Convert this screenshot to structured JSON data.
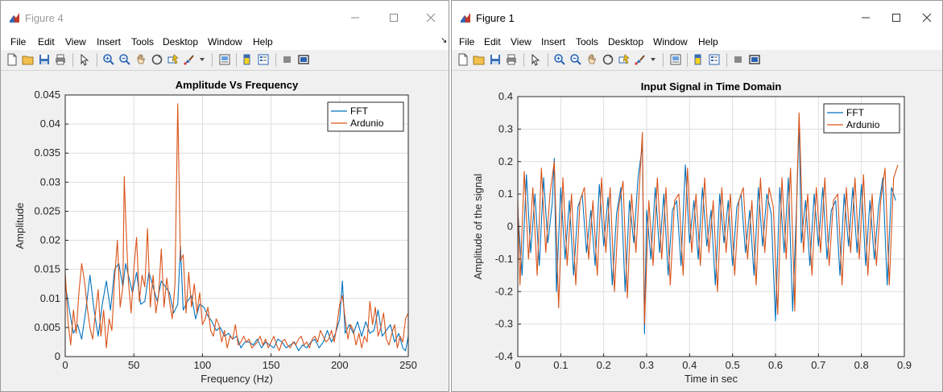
{
  "windows": [
    {
      "title": "Figure 4",
      "menu": [
        "File",
        "Edit",
        "View",
        "Insert",
        "Tools",
        "Desktop",
        "Window",
        "Help"
      ],
      "colors": {
        "fft": "#0072BD",
        "ardunio": "#D95319",
        "titlebar_text": "#9a9a9a"
      }
    },
    {
      "title": "Figure 1",
      "menu": [
        "File",
        "Edit",
        "View",
        "Insert",
        "Tools",
        "Desktop",
        "Window",
        "Help"
      ],
      "colors": {
        "fft": "#0072BD",
        "ardunio": "#D95319",
        "titlebar_text": "#000000"
      }
    }
  ],
  "toolbar_icons": [
    "new-file-icon",
    "open-folder-icon",
    "save-icon",
    "print-icon",
    "pointer-icon",
    "zoom-in-icon",
    "zoom-out-icon",
    "pan-hand-icon",
    "rotate-3d-icon",
    "data-cursor-icon",
    "brush-icon",
    "brush-dropdown-icon",
    "link-plot-icon",
    "colorbar-icon",
    "legend-icon",
    "hide-tools-icon",
    "show-tools-icon"
  ],
  "chart_data": [
    {
      "type": "line",
      "title": "Amplitude Vs Frequency",
      "xlabel": "Frequency  (Hz)",
      "ylabel": "Amplitude",
      "xlim": [
        0,
        250
      ],
      "ylim": [
        0,
        0.045
      ],
      "xticks": [
        0,
        50,
        100,
        150,
        200,
        250
      ],
      "xtick_labels": [
        "0",
        "50",
        "100",
        "150",
        "200",
        "250"
      ],
      "yticks": [
        0,
        0.005,
        0.01,
        0.015,
        0.02,
        0.025,
        0.03,
        0.035,
        0.04,
        0.045
      ],
      "ytick_labels": [
        "0",
        "0.005",
        "0.01",
        "0.015",
        "0.02",
        "0.025",
        "0.03",
        "0.035",
        "0.04",
        "0.045"
      ],
      "grid": true,
      "legend": "top-right",
      "series": [
        {
          "name": "FFT",
          "x": [
            0,
            3,
            6,
            9,
            12,
            15,
            18,
            21,
            24,
            27,
            30,
            33,
            36,
            39,
            42,
            44,
            46,
            49,
            52,
            55,
            58,
            61,
            64,
            67,
            70,
            73,
            76,
            79,
            82,
            84,
            86,
            89,
            92,
            95,
            98,
            101,
            104,
            107,
            110,
            113,
            116,
            119,
            122,
            125,
            128,
            131,
            134,
            137,
            140,
            143,
            146,
            149,
            152,
            155,
            158,
            161,
            164,
            167,
            170,
            173,
            176,
            179,
            182,
            185,
            188,
            191,
            194,
            197,
            200,
            202,
            204,
            207,
            210,
            213,
            216,
            219,
            222,
            225,
            228,
            231,
            234,
            237,
            240,
            243,
            246,
            248,
            250
          ],
          "y": [
            0.0125,
            0.008,
            0.004,
            0.0055,
            0.003,
            0.008,
            0.014,
            0.008,
            0.0035,
            0.009,
            0.013,
            0.008,
            0.015,
            0.016,
            0.012,
            0.016,
            0.014,
            0.011,
            0.0145,
            0.009,
            0.0095,
            0.0145,
            0.012,
            0.0095,
            0.013,
            0.012,
            0.011,
            0.0075,
            0.009,
            0.019,
            0.008,
            0.0095,
            0.0105,
            0.0065,
            0.009,
            0.0085,
            0.007,
            0.006,
            0.0045,
            0.005,
            0.0035,
            0.004,
            0.003,
            0.0035,
            0.0015,
            0.0025,
            0.0025,
            0.002,
            0.003,
            0.0015,
            0.0025,
            0.002,
            0.0015,
            0.003,
            0.0025,
            0.0015,
            0.002,
            0.0025,
            0.001,
            0.002,
            0.0015,
            0.0025,
            0.003,
            0.0015,
            0.0025,
            0.0045,
            0.0025,
            0.004,
            0.0065,
            0.013,
            0.004,
            0.0055,
            0.004,
            0.006,
            0.0035,
            0.006,
            0.004,
            0.0045,
            0.008,
            0.0035,
            0.0045,
            0.0055,
            0.0025,
            0.004,
            0.0015,
            0.001,
            0.0035
          ]
        },
        {
          "name": "Ardunio",
          "x": [
            0,
            2,
            4,
            6,
            8,
            10,
            12,
            14,
            16,
            18,
            20,
            22,
            24,
            26,
            28,
            30,
            32,
            34,
            36,
            38,
            40,
            42,
            43,
            44,
            46,
            48,
            50,
            52,
            54,
            56,
            58,
            60,
            62,
            64,
            66,
            68,
            70,
            72,
            74,
            76,
            78,
            80,
            82,
            84,
            86,
            88,
            90,
            92,
            94,
            96,
            98,
            100,
            102,
            104,
            106,
            108,
            110,
            112,
            114,
            116,
            118,
            120,
            122,
            124,
            126,
            128,
            130,
            132,
            134,
            136,
            138,
            140,
            142,
            144,
            146,
            148,
            150,
            152,
            154,
            156,
            158,
            160,
            162,
            164,
            166,
            168,
            170,
            172,
            174,
            176,
            178,
            180,
            182,
            184,
            186,
            188,
            190,
            192,
            194,
            196,
            198,
            200,
            202,
            204,
            206,
            208,
            210,
            212,
            214,
            216,
            218,
            220,
            222,
            224,
            226,
            228,
            230,
            232,
            234,
            236,
            238,
            240,
            242,
            244,
            246,
            248,
            250
          ],
          "y": [
            0.0145,
            0.006,
            0.002,
            0.008,
            0.004,
            0.011,
            0.016,
            0.013,
            0.0085,
            0.005,
            0.003,
            0.0075,
            0.0115,
            0.0035,
            0.008,
            0.0015,
            0.0065,
            0.0045,
            0.0135,
            0.02,
            0.0085,
            0.012,
            0.031,
            0.024,
            0.013,
            0.0075,
            0.015,
            0.0205,
            0.0095,
            0.014,
            0.012,
            0.022,
            0.0085,
            0.014,
            0.0075,
            0.0105,
            0.0185,
            0.0085,
            0.0135,
            0.0095,
            0.0065,
            0.0125,
            0.0435,
            0.0165,
            0.0175,
            0.0075,
            0.0145,
            0.0085,
            0.0125,
            0.0075,
            0.011,
            0.0055,
            0.0065,
            0.0085,
            0.0045,
            0.0035,
            0.0065,
            0.0055,
            0.0025,
            0.0045,
            0.0015,
            0.0035,
            0.003,
            0.0055,
            0.002,
            0.0025,
            0.0035,
            0.0025,
            0.003,
            0.0015,
            0.002,
            0.0025,
            0.0035,
            0.002,
            0.003,
            0.0015,
            0.0025,
            0.0035,
            0.002,
            0.001,
            0.0025,
            0.003,
            0.002,
            0.0015,
            0.0025,
            0.002,
            0.003,
            0.0035,
            0.002,
            0.0025,
            0.0015,
            0.003,
            0.0035,
            0.0025,
            0.0045,
            0.0035,
            0.0025,
            0.003,
            0.0045,
            0.0025,
            0.0055,
            0.009,
            0.0105,
            0.0065,
            0.003,
            0.0055,
            0.0045,
            0.002,
            0.004,
            0.0015,
            0.0035,
            0.0025,
            0.0095,
            0.0055,
            0.0085,
            0.0035,
            0.005,
            0.0075,
            0.003,
            0.002,
            0.004,
            0.0055,
            0.0015,
            0.0035,
            0.0025,
            0.0065,
            0.0075
          ]
        }
      ]
    },
    {
      "type": "line",
      "title": "Input Signal in Time Domain",
      "xlabel": "Time in sec",
      "ylabel": "Amplitude of the signal",
      "xlim": [
        0,
        0.9
      ],
      "ylim": [
        -0.4,
        0.4
      ],
      "xticks": [
        0,
        0.1,
        0.2,
        0.3,
        0.4,
        0.5,
        0.6,
        0.7,
        0.8,
        0.9
      ],
      "xtick_labels": [
        "0",
        "0.1",
        "0.2",
        "0.3",
        "0.4",
        "0.5",
        "0.6",
        "0.7",
        "0.8",
        "0.9"
      ],
      "yticks": [
        -0.4,
        -0.3,
        -0.2,
        -0.1,
        0,
        0.1,
        0.2,
        0.3,
        0.4
      ],
      "ytick_labels": [
        "-0.4",
        "-0.3",
        "-0.2",
        "-0.1",
        "0",
        "0.1",
        "0.2",
        "0.3",
        "0.4"
      ],
      "grid": true,
      "legend": "top-right",
      "series": [
        {
          "name": "FFT",
          "x": [
            0,
            0.01,
            0.02,
            0.03,
            0.04,
            0.05,
            0.06,
            0.07,
            0.08,
            0.085,
            0.09,
            0.1,
            0.11,
            0.12,
            0.13,
            0.14,
            0.15,
            0.16,
            0.17,
            0.18,
            0.19,
            0.2,
            0.21,
            0.22,
            0.23,
            0.24,
            0.25,
            0.26,
            0.27,
            0.28,
            0.29,
            0.295,
            0.3,
            0.31,
            0.32,
            0.33,
            0.34,
            0.35,
            0.36,
            0.37,
            0.38,
            0.39,
            0.4,
            0.41,
            0.42,
            0.43,
            0.44,
            0.45,
            0.46,
            0.47,
            0.48,
            0.49,
            0.5,
            0.51,
            0.52,
            0.53,
            0.54,
            0.55,
            0.56,
            0.57,
            0.58,
            0.59,
            0.6,
            0.61,
            0.62,
            0.63,
            0.64,
            0.65,
            0.655,
            0.66,
            0.67,
            0.68,
            0.69,
            0.7,
            0.71,
            0.72,
            0.73,
            0.74,
            0.75,
            0.76,
            0.77,
            0.78,
            0.79,
            0.8,
            0.81,
            0.82,
            0.83,
            0.84,
            0.85,
            0.86,
            0.87,
            0.88
          ],
          "y": [
            0.05,
            -0.15,
            0.16,
            -0.08,
            0.1,
            -0.12,
            0.15,
            -0.05,
            0.07,
            0.21,
            -0.2,
            0.12,
            -0.1,
            0.08,
            -0.15,
            0.06,
            0.1,
            -0.08,
            0.05,
            -0.12,
            0.13,
            -0.06,
            0.09,
            -0.18,
            0.04,
            0.12,
            -0.2,
            0.08,
            -0.05,
            0.15,
            0.25,
            -0.33,
            0.05,
            -0.1,
            0.12,
            -0.08,
            0.1,
            -0.15,
            0.05,
            0.08,
            -0.12,
            0.19,
            -0.05,
            0.08,
            -0.1,
            0.12,
            -0.06,
            0.05,
            -0.18,
            0.1,
            -0.05,
            0.08,
            -0.12,
            0.06,
            0.1,
            -0.08,
            0.05,
            -0.15,
            0.12,
            -0.06,
            0.1,
            0.04,
            -0.29,
            0.12,
            -0.08,
            0.15,
            -0.26,
            0.1,
            0.33,
            -0.05,
            0.08,
            -0.12,
            0.1,
            -0.06,
            0.12,
            -0.1,
            0.05,
            0.08,
            -0.15,
            0.1,
            -0.06,
            0.12,
            -0.08,
            0.13,
            -0.12,
            0.08,
            -0.1,
            0.06,
            0.15,
            -0.18,
            0.12,
            0.08
          ]
        },
        {
          "name": "Ardunio",
          "x": [
            0,
            0.005,
            0.015,
            0.025,
            0.035,
            0.045,
            0.055,
            0.065,
            0.075,
            0.085,
            0.095,
            0.105,
            0.115,
            0.125,
            0.135,
            0.145,
            0.155,
            0.165,
            0.175,
            0.185,
            0.195,
            0.205,
            0.215,
            0.225,
            0.235,
            0.245,
            0.255,
            0.265,
            0.275,
            0.285,
            0.29,
            0.295,
            0.305,
            0.315,
            0.325,
            0.335,
            0.345,
            0.355,
            0.365,
            0.375,
            0.385,
            0.395,
            0.405,
            0.415,
            0.425,
            0.435,
            0.445,
            0.455,
            0.465,
            0.475,
            0.485,
            0.495,
            0.505,
            0.515,
            0.525,
            0.535,
            0.545,
            0.555,
            0.565,
            0.575,
            0.585,
            0.595,
            0.605,
            0.615,
            0.625,
            0.635,
            0.645,
            0.65,
            0.655,
            0.665,
            0.675,
            0.685,
            0.695,
            0.705,
            0.715,
            0.725,
            0.735,
            0.745,
            0.755,
            0.765,
            0.775,
            0.785,
            0.795,
            0.805,
            0.815,
            0.825,
            0.835,
            0.845,
            0.855,
            0.865,
            0.875,
            0.885
          ],
          "y": [
            0.08,
            -0.18,
            0.17,
            -0.1,
            0.12,
            -0.15,
            0.18,
            -0.08,
            0.1,
            0.2,
            -0.25,
            0.15,
            -0.12,
            0.1,
            -0.18,
            0.08,
            0.12,
            -0.1,
            0.08,
            -0.15,
            0.15,
            -0.08,
            0.12,
            -0.2,
            0.06,
            0.14,
            -0.22,
            0.1,
            -0.08,
            0.17,
            0.29,
            -0.3,
            0.08,
            -0.12,
            0.15,
            -0.1,
            0.12,
            -0.18,
            0.08,
            0.1,
            -0.15,
            0.18,
            -0.08,
            0.1,
            -0.12,
            0.15,
            -0.08,
            0.08,
            -0.2,
            0.12,
            -0.08,
            0.1,
            -0.15,
            0.08,
            0.12,
            -0.1,
            0.08,
            -0.18,
            0.15,
            -0.08,
            0.12,
            0.06,
            -0.27,
            0.15,
            -0.1,
            0.18,
            -0.26,
            0.12,
            0.35,
            -0.08,
            0.1,
            -0.15,
            0.12,
            -0.08,
            0.15,
            -0.12,
            0.08,
            0.1,
            -0.18,
            0.12,
            -0.08,
            0.15,
            -0.1,
            0.16,
            -0.15,
            0.1,
            -0.12,
            0.08,
            0.18,
            -0.18,
            0.15,
            0.19
          ]
        }
      ]
    }
  ]
}
